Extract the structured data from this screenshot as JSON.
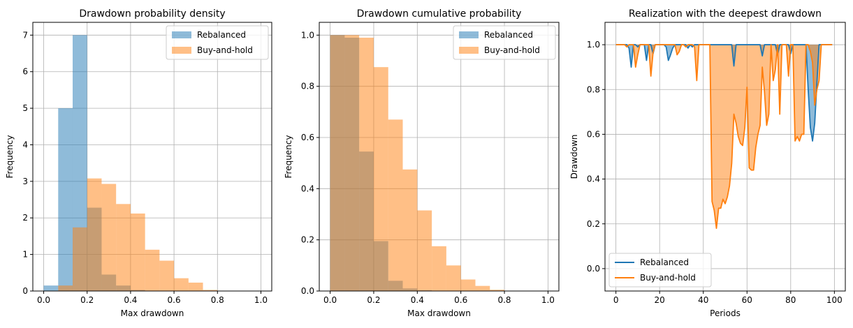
{
  "colors": {
    "rebalanced": "#1f77b4",
    "buy_and_hold": "#ff7f0e",
    "grid": "#b0b0b0",
    "axis": "#000000"
  },
  "chart_data": [
    {
      "type": "histogram",
      "title": "Drawdown probability density",
      "xlabel": "Max drawdown",
      "ylabel": "Frequency",
      "xlim": [
        -0.05,
        1.05
      ],
      "ylim": [
        0,
        7.35
      ],
      "xticks": [
        0.0,
        0.2,
        0.4,
        0.6,
        0.8,
        1.0
      ],
      "xtick_labels": [
        "0.0",
        "0.2",
        "0.4",
        "0.6",
        "0.8",
        "1.0"
      ],
      "yticks": [
        0,
        1,
        2,
        3,
        4,
        5,
        6,
        7
      ],
      "ytick_labels": [
        "0",
        "1",
        "2",
        "3",
        "4",
        "5",
        "6",
        "7"
      ],
      "grid": true,
      "legend": "upper right",
      "series": [
        {
          "name": "Rebalanced",
          "color": "#1f77b4",
          "alpha": 0.5,
          "bin_edges": [
            0.0,
            0.0667,
            0.1333,
            0.2,
            0.2667,
            0.3333,
            0.4,
            0.4667,
            0.5333,
            0.6,
            0.6667,
            0.7333,
            0.8,
            0.8667,
            0.9333,
            1.0
          ],
          "values": [
            0.15,
            5.0,
            7.0,
            2.28,
            0.45,
            0.15,
            0.03,
            0.01,
            0,
            0,
            0,
            0,
            0,
            0,
            0
          ]
        },
        {
          "name": "Buy-and-hold",
          "color": "#ff7f0e",
          "alpha": 0.5,
          "bin_edges": [
            0.0,
            0.0667,
            0.1333,
            0.2,
            0.2667,
            0.3333,
            0.4,
            0.4667,
            0.5333,
            0.6,
            0.6667,
            0.7333,
            0.8,
            0.8667,
            0.9333,
            1.0
          ],
          "values": [
            0.0,
            0.15,
            1.74,
            3.08,
            2.93,
            2.38,
            2.12,
            1.13,
            0.83,
            0.35,
            0.23,
            0.03,
            0.0,
            0.0,
            0.0
          ]
        }
      ]
    },
    {
      "type": "histogram",
      "title": "Drawdown cumulative probability",
      "xlabel": "Max drawdown",
      "ylabel": "Frequency",
      "xlim": [
        -0.05,
        1.05
      ],
      "ylim": [
        0,
        1.05
      ],
      "xticks": [
        0.0,
        0.2,
        0.4,
        0.6,
        0.8,
        1.0
      ],
      "xtick_labels": [
        "0.0",
        "0.2",
        "0.4",
        "0.6",
        "0.8",
        "1.0"
      ],
      "yticks": [
        0.0,
        0.2,
        0.4,
        0.6,
        0.8,
        1.0
      ],
      "ytick_labels": [
        "0.0",
        "0.2",
        "0.4",
        "0.6",
        "0.8",
        "1.0"
      ],
      "grid": true,
      "legend": "upper right",
      "series": [
        {
          "name": "Rebalanced",
          "color": "#1f77b4",
          "alpha": 0.5,
          "bin_edges": [
            0.0,
            0.0667,
            0.1333,
            0.2,
            0.2667,
            0.3333,
            0.4,
            0.4667,
            0.5333,
            0.6,
            0.6667,
            0.7333,
            0.8,
            0.8667,
            0.9333,
            1.0
          ],
          "values": [
            1.0,
            0.99,
            0.545,
            0.195,
            0.04,
            0.01,
            0.003,
            0.001,
            0,
            0,
            0,
            0,
            0,
            0,
            0
          ]
        },
        {
          "name": "Buy-and-hold",
          "color": "#ff7f0e",
          "alpha": 0.5,
          "bin_edges": [
            0.0,
            0.0667,
            0.1333,
            0.2,
            0.2667,
            0.3333,
            0.4,
            0.4667,
            0.5333,
            0.6,
            0.6667,
            0.7333,
            0.8,
            0.8667,
            0.9333,
            1.0
          ],
          "values": [
            1.0,
            1.0,
            0.99,
            0.875,
            0.67,
            0.475,
            0.315,
            0.175,
            0.1,
            0.045,
            0.02,
            0.005,
            0.001,
            0.0,
            0.0
          ]
        }
      ]
    },
    {
      "type": "line",
      "title": "Realization with the deepest drawdown",
      "xlabel": "Periods",
      "ylabel": "Drawdown",
      "xlim": [
        -5,
        105
      ],
      "ylim": [
        -0.1,
        1.1
      ],
      "xticks": [
        0,
        20,
        40,
        60,
        80,
        100
      ],
      "xtick_labels": [
        "0",
        "20",
        "40",
        "60",
        "80",
        "100"
      ],
      "yticks": [
        0.0,
        0.2,
        0.4,
        0.6,
        0.8,
        1.0
      ],
      "ytick_labels": [
        "0.0",
        "0.2",
        "0.4",
        "0.6",
        "0.8",
        "1.0"
      ],
      "grid": true,
      "legend": "lower left",
      "fill_between": true,
      "series": [
        {
          "name": "Rebalanced",
          "color": "#1f77b4",
          "points": [
            [
              0,
              1
            ],
            [
              5,
              1
            ],
            [
              6,
              0.985
            ],
            [
              7,
              0.9
            ],
            [
              8,
              1
            ],
            [
              9,
              1
            ],
            [
              10,
              0.99
            ],
            [
              11,
              1
            ],
            [
              12,
              1
            ],
            [
              13,
              1
            ],
            [
              14,
              0.93
            ],
            [
              15,
              1
            ],
            [
              16,
              1
            ],
            [
              17,
              0.96
            ],
            [
              18,
              1
            ],
            [
              22,
              1
            ],
            [
              23,
              0.99
            ],
            [
              24,
              0.93
            ],
            [
              25,
              0.955
            ],
            [
              26,
              0.985
            ],
            [
              27,
              1
            ],
            [
              32,
              1
            ],
            [
              33,
              0.985
            ],
            [
              34,
              1
            ],
            [
              35,
              0.99
            ],
            [
              36,
              1
            ],
            [
              53,
              1
            ],
            [
              54,
              0.905
            ],
            [
              55,
              1
            ],
            [
              66,
              1
            ],
            [
              67,
              0.95
            ],
            [
              68,
              1
            ],
            [
              73,
              1
            ],
            [
              74,
              0.955
            ],
            [
              75,
              1
            ],
            [
              79,
              1
            ],
            [
              80,
              0.96
            ],
            [
              81,
              1
            ],
            [
              87,
              1
            ],
            [
              88,
              0.8
            ],
            [
              89,
              0.63
            ],
            [
              90,
              0.57
            ],
            [
              91,
              0.65
            ],
            [
              92,
              0.83
            ],
            [
              93,
              1
            ],
            [
              99,
              1
            ]
          ]
        },
        {
          "name": "Buy-and-hold",
          "color": "#ff7f0e",
          "points": [
            [
              0,
              1
            ],
            [
              4,
              1
            ],
            [
              5,
              0.99
            ],
            [
              6,
              1
            ],
            [
              8,
              1
            ],
            [
              9,
              0.9
            ],
            [
              10,
              0.955
            ],
            [
              11,
              1
            ],
            [
              15,
              1
            ],
            [
              16,
              0.86
            ],
            [
              17,
              0.965
            ],
            [
              18,
              1
            ],
            [
              27,
              1
            ],
            [
              28,
              0.955
            ],
            [
              29,
              0.97
            ],
            [
              30,
              1
            ],
            [
              31,
              1
            ],
            [
              32,
              0.99
            ],
            [
              33,
              1
            ],
            [
              35,
              1
            ],
            [
              36,
              0.99
            ],
            [
              37,
              0.84
            ],
            [
              38,
              1
            ],
            [
              43,
              1
            ],
            [
              44,
              0.3
            ],
            [
              45,
              0.26
            ],
            [
              46,
              0.18
            ],
            [
              47,
              0.27
            ],
            [
              48,
              0.27
            ],
            [
              49,
              0.31
            ],
            [
              50,
              0.29
            ],
            [
              51,
              0.32
            ],
            [
              52,
              0.37
            ],
            [
              53,
              0.47
            ],
            [
              54,
              0.69
            ],
            [
              55,
              0.65
            ],
            [
              56,
              0.59
            ],
            [
              57,
              0.56
            ],
            [
              58,
              0.55
            ],
            [
              59,
              0.63
            ],
            [
              60,
              0.81
            ],
            [
              61,
              0.45
            ],
            [
              62,
              0.44
            ],
            [
              63,
              0.44
            ],
            [
              64,
              0.54
            ],
            [
              65,
              0.6
            ],
            [
              66,
              0.64
            ],
            [
              67,
              0.9
            ],
            [
              68,
              0.79
            ],
            [
              69,
              0.64
            ],
            [
              70,
              0.69
            ],
            [
              71,
              1
            ],
            [
              72,
              0.84
            ],
            [
              73,
              0.89
            ],
            [
              74,
              1
            ],
            [
              75,
              0.69
            ],
            [
              76,
              1
            ],
            [
              78,
              1
            ],
            [
              79,
              0.86
            ],
            [
              80,
              1
            ],
            [
              81,
              1
            ],
            [
              82,
              0.57
            ],
            [
              83,
              0.59
            ],
            [
              84,
              0.57
            ],
            [
              85,
              0.6
            ],
            [
              86,
              0.6
            ],
            [
              87,
              1
            ],
            [
              88,
              1
            ],
            [
              89,
              0.97
            ],
            [
              90,
              0.92
            ],
            [
              91,
              0.73
            ],
            [
              92,
              0.8
            ],
            [
              93,
              0.84
            ],
            [
              94,
              1
            ],
            [
              99,
              1
            ]
          ]
        }
      ]
    }
  ]
}
